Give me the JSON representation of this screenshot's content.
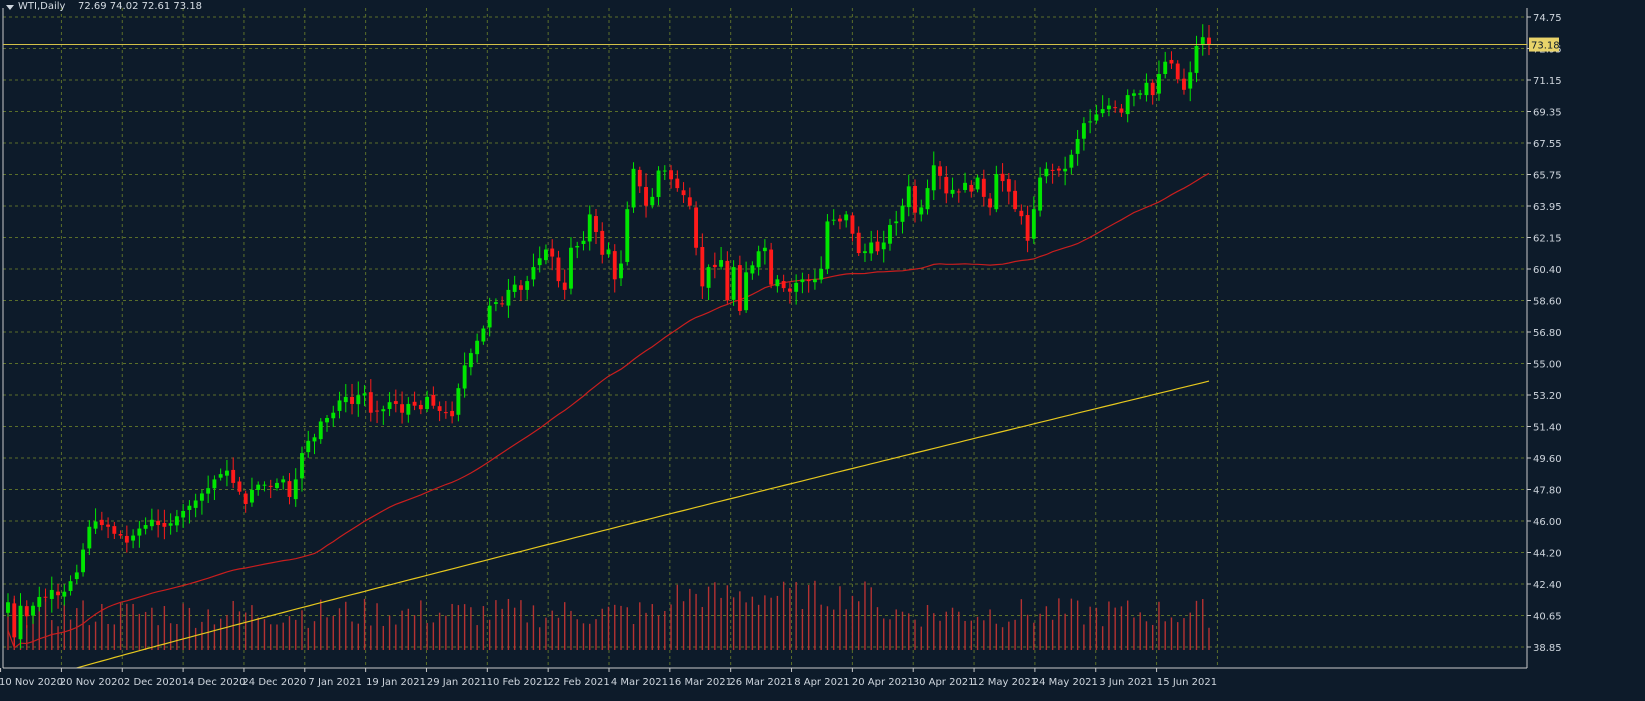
{
  "header": {
    "symbol_label": "WTI,Daily",
    "ohlc_text": "72.69 74.02 72.61 73.18",
    "menu_icon": "triangle-down-icon"
  },
  "colors": {
    "background": "#0d1b2a",
    "grid": "#5a6e2a",
    "axis": "#c9c9c9",
    "bull": "#00e600",
    "bear": "#ff1a1a",
    "ma_fast": "#c81e1e",
    "ma_slow": "#e6c81e",
    "volume": "#b43232",
    "current_price_line": "#d4c24a",
    "current_price_box": "#e8d36a"
  },
  "chart_data": {
    "type": "candlestick",
    "symbol": "WTI",
    "timeframe": "Daily",
    "price_axis_ticks": [
      "74.75",
      "72.95",
      "71.15",
      "69.35",
      "67.55",
      "65.75",
      "63.95",
      "62.15",
      "60.40",
      "58.60",
      "56.80",
      "55.00",
      "53.20",
      "51.40",
      "49.60",
      "47.80",
      "46.00",
      "44.20",
      "42.40",
      "40.65",
      "38.85"
    ],
    "ylim": [
      38.85,
      74.75
    ],
    "time_axis_labels": [
      "10 Nov 2020",
      "20 Nov 2020",
      "2 Dec 2020",
      "14 Dec 2020",
      "24 Dec 2020",
      "7 Jan 2021",
      "19 Jan 2021",
      "29 Jan 2021",
      "10 Feb 2021",
      "22 Feb 2021",
      "4 Mar 2021",
      "16 Mar 2021",
      "26 Mar 2021",
      "8 Apr 2021",
      "20 Apr 2021",
      "30 Apr 2021",
      "12 May 2021",
      "24 May 2021",
      "3 Jun 2021",
      "15 Jun 2021"
    ],
    "current_price": "73.18",
    "closes": [
      41.4,
      39.4,
      41.2,
      40.6,
      41.2,
      41.7,
      41.7,
      42.1,
      41.8,
      42.0,
      42.6,
      43.1,
      44.4,
      45.7,
      46.0,
      45.8,
      45.7,
      45.3,
      45.2,
      44.8,
      45.2,
      45.6,
      45.8,
      46.1,
      45.8,
      45.7,
      45.9,
      46.3,
      46.6,
      46.9,
      47.2,
      47.6,
      47.9,
      48.4,
      48.7,
      48.9,
      48.2,
      47.7,
      47.0,
      47.8,
      48.1,
      48.1,
      48.0,
      48.2,
      48.4,
      47.4,
      48.4,
      49.9,
      50.6,
      50.8,
      51.7,
      51.9,
      52.2,
      52.9,
      53.1,
      52.7,
      53.2,
      53.3,
      52.2,
      52.3,
      52.4,
      52.8,
      52.7,
      52.2,
      52.7,
      52.6,
      52.4,
      53.1,
      52.6,
      52.3,
      52.2,
      52.0,
      53.6,
      54.9,
      55.6,
      56.3,
      57.0,
      58.3,
      58.5,
      58.4,
      59.2,
      59.5,
      59.2,
      59.7,
      60.5,
      61.0,
      61.5,
      61.1,
      59.7,
      59.2,
      61.6,
      61.7,
      62.0,
      63.5,
      62.5,
      61.2,
      61.5,
      59.8,
      60.7,
      63.8,
      66.1,
      65.1,
      64.0,
      64.5,
      66.0,
      66.0,
      65.5,
      65.0,
      64.6,
      64.0,
      61.6,
      59.4,
      60.5,
      60.5,
      60.9,
      58.6,
      60.5,
      58.0,
      60.2,
      60.6,
      61.4,
      61.6,
      59.5,
      59.8,
      59.3,
      59.1,
      59.6,
      59.8,
      59.7,
      59.8,
      60.4,
      63.1,
      63.2,
      63.1,
      63.5,
      62.4,
      61.3,
      61.4,
      61.9,
      61.4,
      61.9,
      62.9,
      63.1,
      64.0,
      65.1,
      63.6,
      63.9,
      65.0,
      66.3,
      65.7,
      64.7,
      64.9,
      64.8,
      65.3,
      64.8,
      65.6,
      64.5,
      63.9,
      65.8,
      65.4,
      64.8,
      63.8,
      63.4,
      62.0,
      63.8,
      65.6,
      66.1,
      66.0,
      66.0,
      66.1,
      66.9,
      67.8,
      68.7,
      68.8,
      69.2,
      69.5,
      69.7,
      69.6,
      69.3,
      70.3,
      70.4,
      70.4,
      71.0,
      70.3,
      71.5,
      72.2,
      72.1,
      71.2,
      70.6,
      71.6,
      73.1,
      73.6,
      73.2
    ],
    "ma_fast_period": 50,
    "ma_slow_period": 200,
    "x_start_date": "2020-11-04",
    "x_end_date": "2021-06-23"
  }
}
